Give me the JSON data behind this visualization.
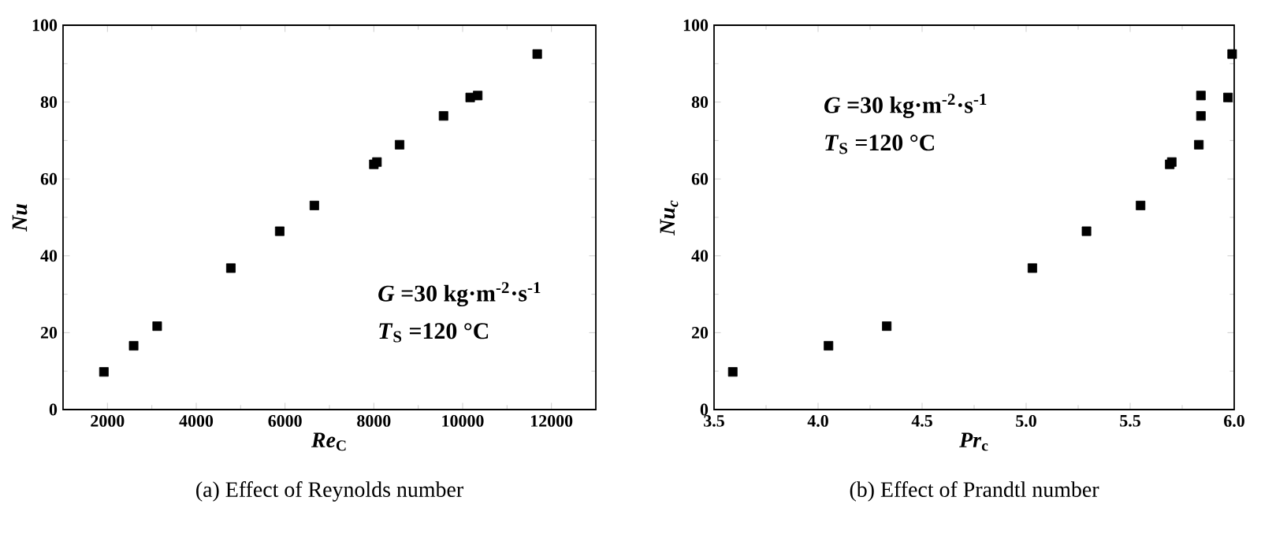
{
  "chart_data": [
    {
      "type": "scatter",
      "title": "(a) Effect of Reynolds number",
      "xlabel": "*Re*$_{C}$",
      "ylabel": "Nu",
      "marker": "square",
      "color": "#000000",
      "x": [
        1920,
        2590,
        3120,
        4780,
        5880,
        6660,
        8000,
        8070,
        8580,
        9570,
        10170,
        10340,
        11680
      ],
      "values": [
        9.8,
        16.6,
        21.7,
        36.8,
        46.4,
        53.1,
        63.8,
        64.4,
        68.9,
        76.4,
        81.2,
        81.7,
        92.5
      ],
      "xlim": [
        1000,
        13000
      ],
      "ylim": [
        0,
        100
      ],
      "xticks": [
        2000,
        4000,
        6000,
        8000,
        10000,
        12000
      ],
      "yticks": [
        0,
        20,
        40,
        60,
        80,
        100
      ],
      "annotations": [
        "*G* =30 kg·m$^{-2}$·s$^{-1}$",
        "*T*$_{S}$ =120 °C"
      ]
    },
    {
      "type": "scatter",
      "title": "(b) Effect of Prandtl number",
      "xlabel": "*Pr*$_{c}$",
      "ylabel": "*Nu*$_{c}$",
      "marker": "square",
      "color": "#000000",
      "x": [
        3.59,
        4.05,
        4.33,
        5.03,
        5.29,
        5.55,
        5.69,
        5.7,
        5.83,
        5.84,
        5.84,
        5.97,
        5.99
      ],
      "values": [
        9.8,
        16.6,
        21.7,
        36.8,
        46.4,
        53.1,
        63.8,
        64.4,
        68.9,
        76.4,
        81.7,
        81.2,
        92.5
      ],
      "xlim": [
        3.5,
        6.0
      ],
      "ylim": [
        0,
        100
      ],
      "xticks": [
        {
          "value": 3.5,
          "label": "3.5"
        },
        {
          "value": 4.0,
          "label": "4.0"
        },
        {
          "value": 4.5,
          "label": "4.5"
        },
        {
          "value": 5.0,
          "label": "5.0"
        },
        {
          "value": 5.5,
          "label": "5.5"
        },
        {
          "value": 6.0,
          "label": "6.0"
        }
      ],
      "yticks": [
        0,
        20,
        40,
        60,
        80,
        100
      ],
      "annotations": [
        "*G* =30 kg·m$^{-2}$·s$^{-1}$",
        "*T*$_{S}$ =120 °C"
      ]
    }
  ]
}
